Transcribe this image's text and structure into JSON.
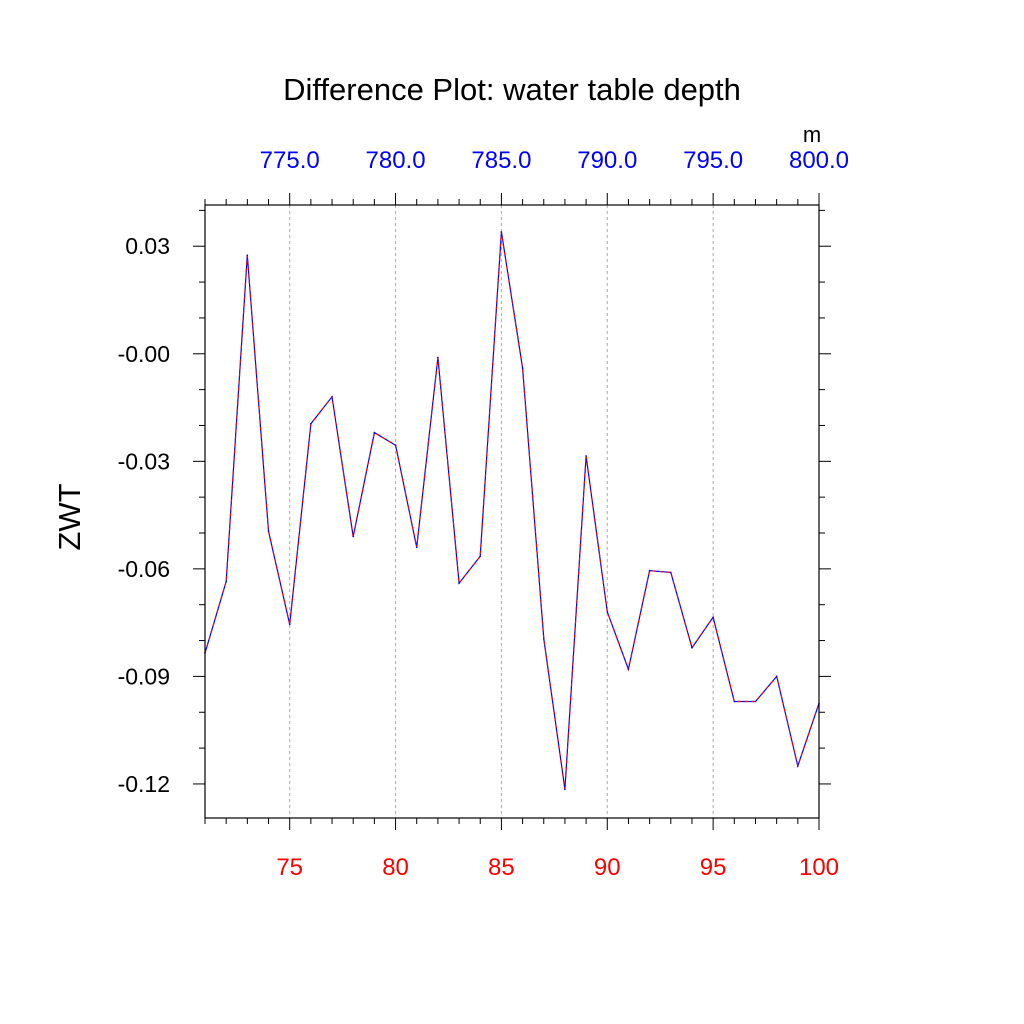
{
  "chart_data": {
    "type": "line",
    "title": "Difference Plot: water table depth",
    "ylabel": "ZWT",
    "xlabel": "",
    "top_axis_unit": "m",
    "x": [
      71,
      72,
      73,
      74,
      75,
      76,
      77,
      78,
      79,
      80,
      81,
      82,
      83,
      84,
      85,
      86,
      87,
      88,
      89,
      90,
      91,
      92,
      93,
      94,
      95,
      96,
      97,
      98,
      99,
      100
    ],
    "series": [
      {
        "values": [
          -0.0835,
          -0.0635,
          0.0275,
          -0.0495,
          -0.0755,
          -0.0195,
          -0.012,
          -0.051,
          -0.022,
          -0.0255,
          -0.054,
          -0.001,
          -0.064,
          -0.0565,
          0.034,
          -0.004,
          -0.0795,
          -0.1215,
          -0.0285,
          -0.072,
          -0.088,
          -0.0605,
          -0.061,
          -0.082,
          -0.0735,
          -0.097,
          -0.097,
          -0.09,
          -0.115,
          -0.0975
        ]
      }
    ],
    "xlim": [
      71,
      100
    ],
    "ylim": [
      -0.1295,
      0.0415
    ],
    "bottom_ticks": [
      "75",
      "80",
      "85",
      "90",
      "95",
      "100"
    ],
    "bottom_tick_values": [
      75,
      80,
      85,
      90,
      95,
      100
    ],
    "top_ticks": [
      "775.0",
      "780.0",
      "785.0",
      "790.0",
      "795.0",
      "800.0"
    ],
    "y_ticks": [
      "0.03",
      "-0.00",
      "-0.03",
      "-0.06",
      "-0.09",
      "-0.12"
    ],
    "y_tick_values": [
      0.03,
      0.0,
      -0.03,
      -0.06,
      -0.09,
      -0.12
    ],
    "grid": "vertical dashed at major x ticks",
    "colors": {
      "line_primary": "#0000ff",
      "line_dash": "#ff0000",
      "bottom_tick_labels": "#ff0000",
      "top_tick_labels": "#0000ff",
      "text": "#000000",
      "grid": "#aaaaaa"
    }
  }
}
